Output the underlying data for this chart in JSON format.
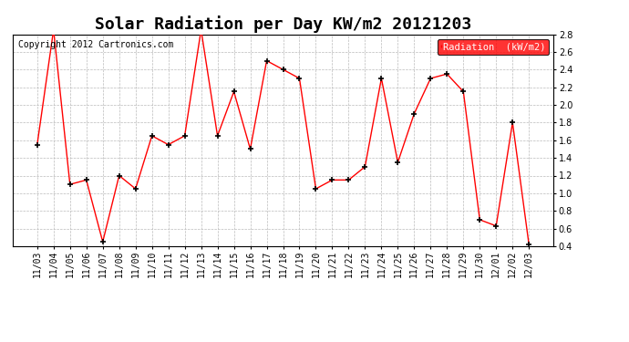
{
  "title": "Solar Radiation per Day KW/m2 20121203",
  "copyright": "Copyright 2012 Cartronics.com",
  "legend_label": "Radiation  (kW/m2)",
  "labels": [
    "11/03",
    "11/04",
    "11/05",
    "11/06",
    "11/07",
    "11/08",
    "11/09",
    "11/10",
    "11/11",
    "11/12",
    "11/13",
    "11/14",
    "11/15",
    "11/16",
    "11/17",
    "11/18",
    "11/19",
    "11/20",
    "11/21",
    "11/22",
    "11/23",
    "11/24",
    "11/25",
    "11/26",
    "11/27",
    "11/28",
    "11/29",
    "11/30",
    "12/01",
    "12/02",
    "12/03"
  ],
  "values": [
    1.55,
    2.85,
    1.1,
    1.15,
    0.45,
    1.2,
    1.05,
    1.65,
    1.55,
    1.65,
    2.85,
    1.65,
    2.15,
    1.5,
    2.5,
    2.4,
    2.3,
    1.05,
    1.15,
    1.15,
    1.3,
    2.3,
    1.35,
    1.9,
    2.3,
    2.35,
    2.15,
    0.7,
    0.63,
    1.8,
    0.42
  ],
  "line_color": "#ff0000",
  "marker_color": "#000000",
  "bg_color": "#ffffff",
  "grid_color": "#bbbbbb",
  "ylim": [
    0.4,
    2.8
  ],
  "yticks": [
    0.4,
    0.6,
    0.8,
    1.0,
    1.2,
    1.4,
    1.6,
    1.8,
    2.0,
    2.2,
    2.4,
    2.6,
    2.8
  ],
  "legend_bg": "#ff0000",
  "legend_text_color": "#ffffff",
  "title_fontsize": 13,
  "tick_fontsize": 7,
  "copyright_fontsize": 7
}
